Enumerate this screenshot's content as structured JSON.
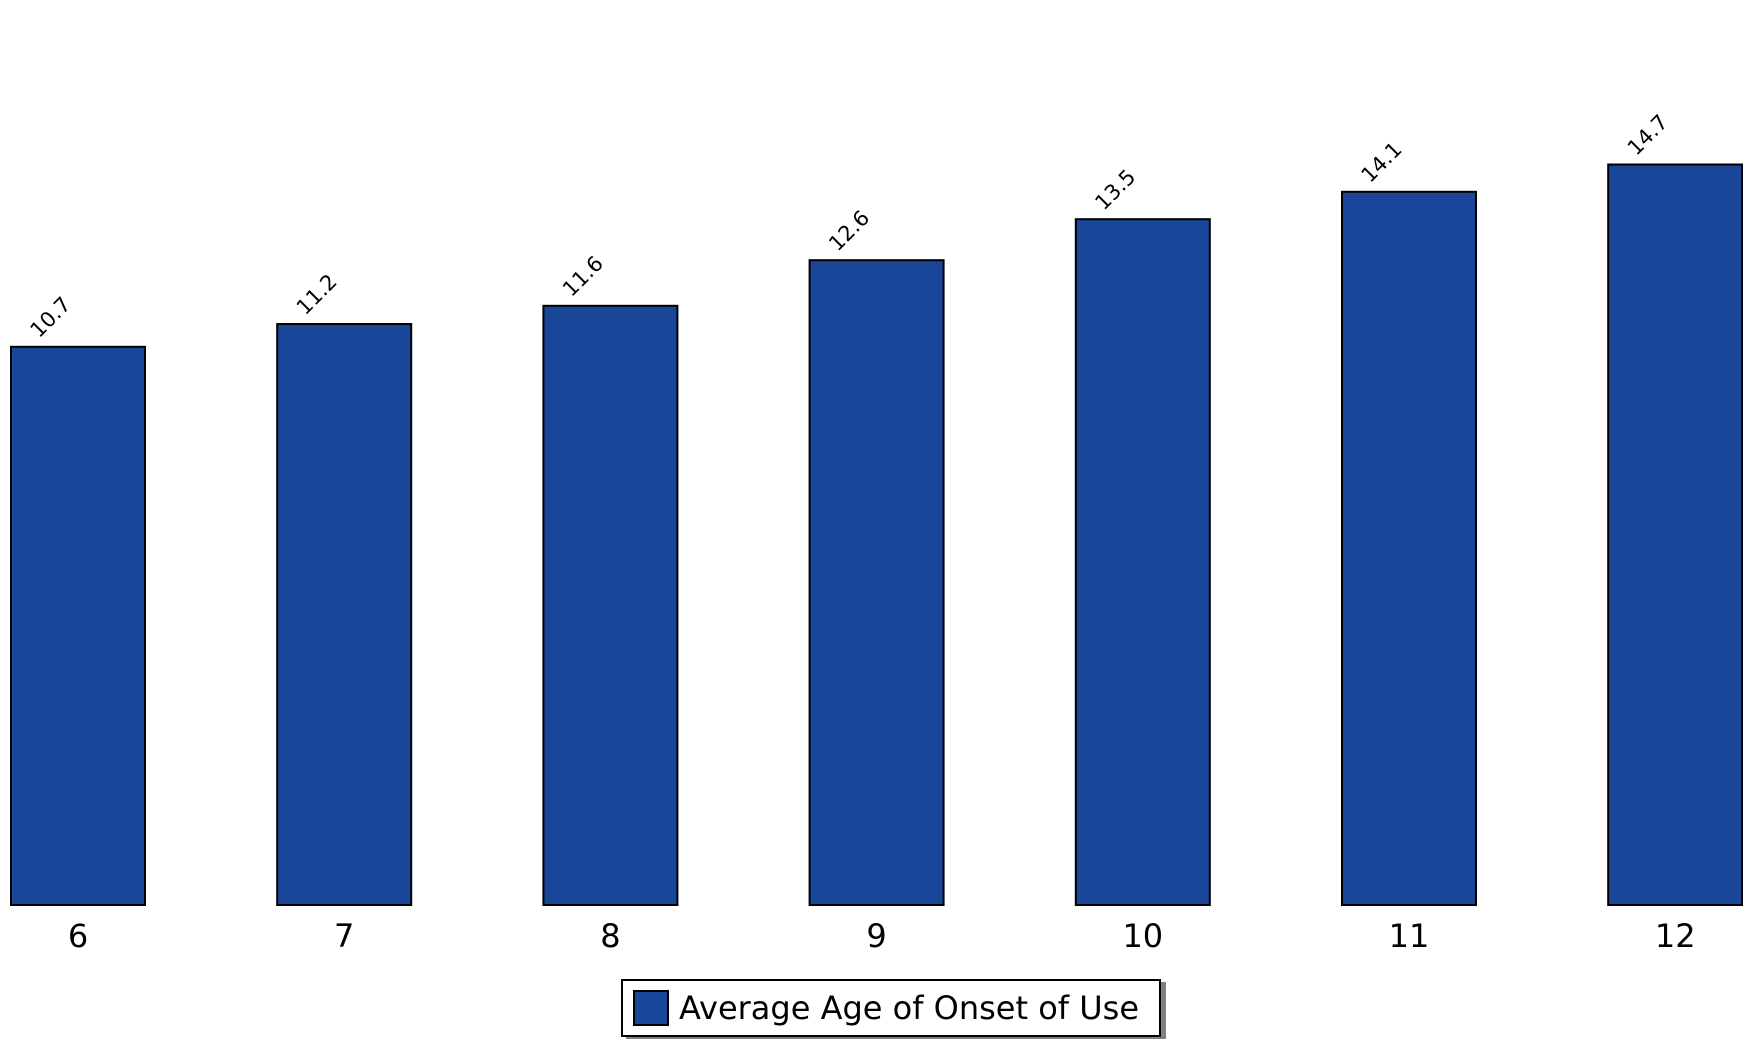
{
  "chart_data": {
    "type": "bar",
    "title": "",
    "xlabel": "",
    "ylabel": "",
    "categories": [
      "6",
      "7",
      "8",
      "9",
      "10",
      "11",
      "12"
    ],
    "series": [
      {
        "name": "Average Age of Onset of Use",
        "values": [
          10.7,
          11.2,
          11.6,
          12.6,
          13.5,
          14.1,
          14.7
        ],
        "color": "#1a4699"
      }
    ],
    "data_labels": [
      "10.7",
      "11.2",
      "11.6",
      "12.6",
      "13.5",
      "14.1",
      "14.7"
    ],
    "grid": false,
    "legend_position": "bottom-center"
  }
}
